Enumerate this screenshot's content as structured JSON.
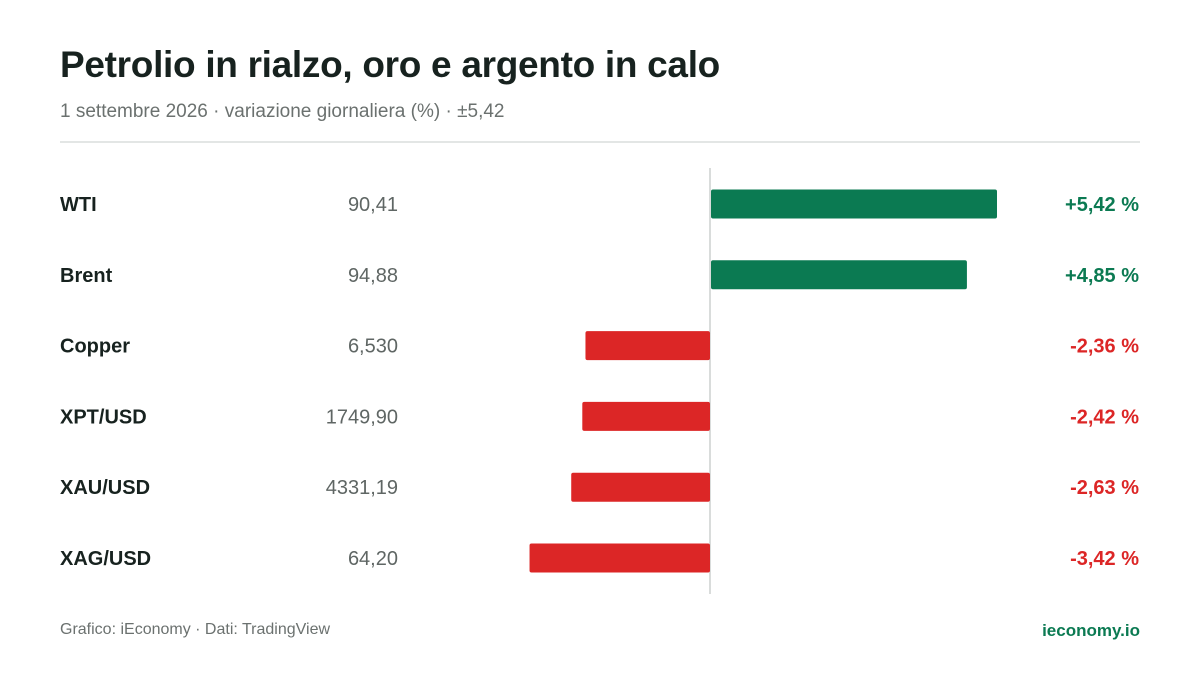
{
  "header": {
    "title": "Petrolio in rialzo, oro e argento in calo",
    "subtitle": "1 settembre 2026 · variazione giornaliera (%) · ±5,42"
  },
  "footer": {
    "source": "Grafico: iEconomy · Dati: TradingView",
    "brand": "ieconomy.io"
  },
  "colors": {
    "positive": "#0b7a52",
    "negative": "#dc2626",
    "axis": "#d9dcdb"
  },
  "chart_data": {
    "type": "bar",
    "orientation": "horizontal",
    "title": "Petrolio in rialzo, oro e argento in calo",
    "subtitle": "1 settembre 2026 · variazione giornaliera (%) · ±5,42",
    "categories": [
      "WTI",
      "Brent",
      "Copper",
      "XPT/USD",
      "XAU/USD",
      "XAG/USD"
    ],
    "prices": [
      "90,41",
      "94,88",
      "6,530",
      "1749,90",
      "4331,19",
      "64,20"
    ],
    "series": [
      {
        "values": [
          5.42,
          4.85,
          -2.36,
          -2.42,
          -2.63,
          -3.42
        ],
        "labels": [
          "+5,42 %",
          "+4,85 %",
          "-2,36 %",
          "-2,42 %",
          "-2,63 %",
          "-3,42 %"
        ]
      }
    ],
    "xlim": [
      -5.42,
      5.42
    ],
    "grid": false,
    "legend": "none"
  }
}
